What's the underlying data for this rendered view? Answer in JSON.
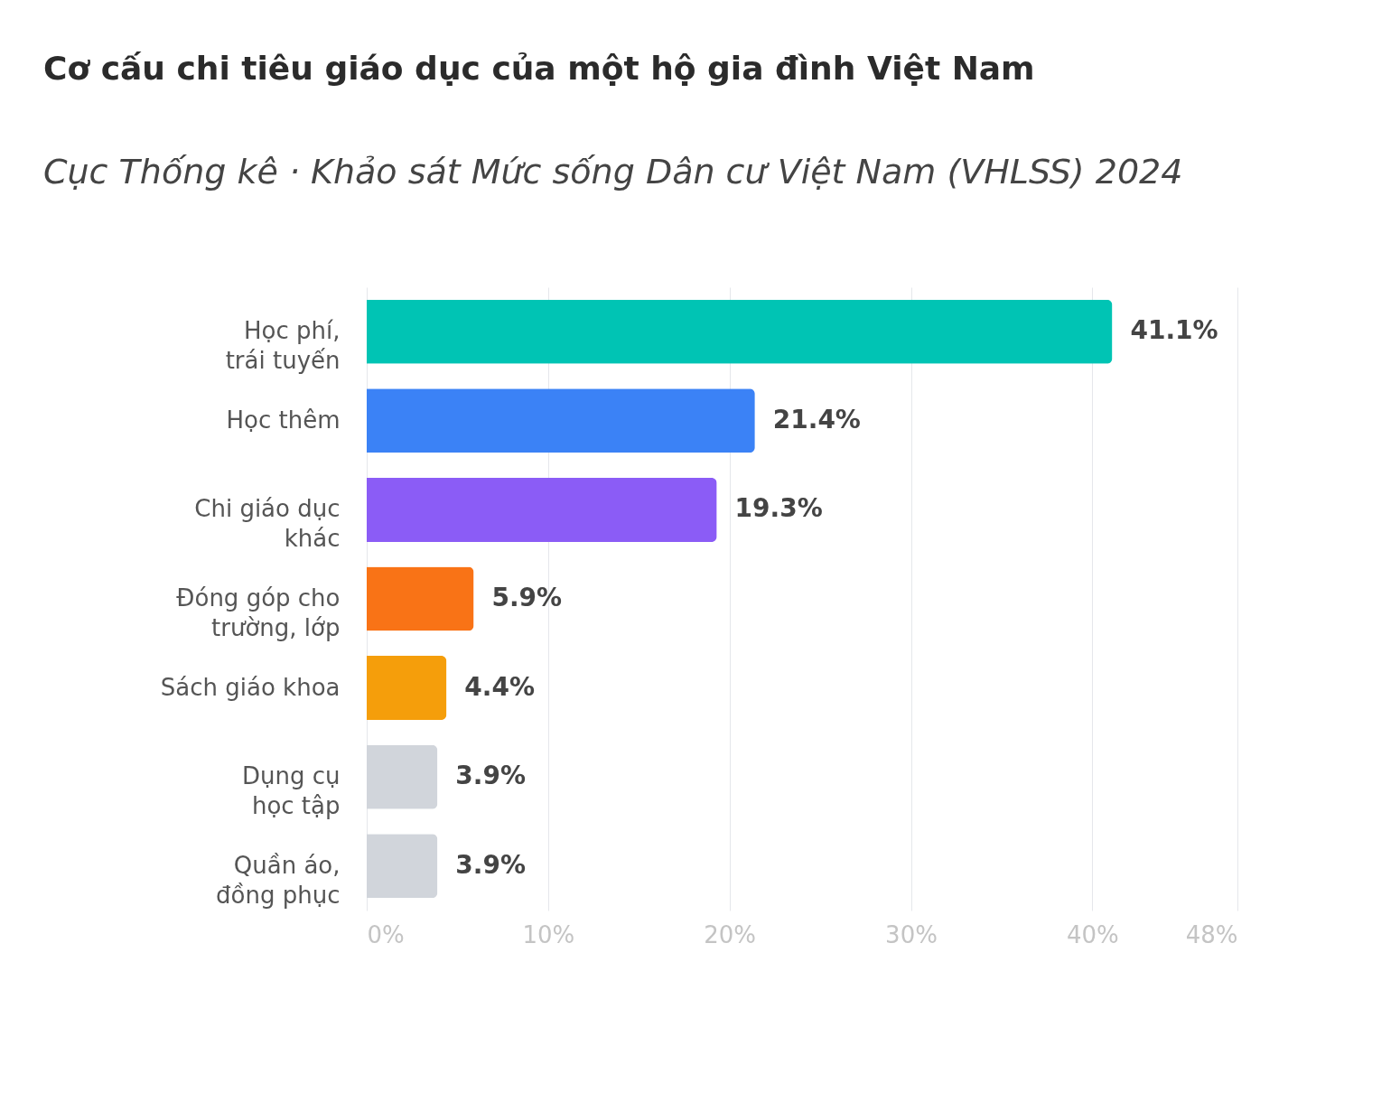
{
  "chart_data": {
    "type": "bar",
    "orientation": "horizontal",
    "title": "Cơ cấu chi tiêu giáo dục của một hộ gia đình Việt Nam",
    "subtitle": "Cục Thống kê · Khảo sát Mức sống Dân cư Việt Nam (VHLSS) 2024",
    "categories": [
      "Học phí,\ntrái tuyến",
      "Học thêm",
      "Chi giáo dục\nkhác",
      "Đóng góp cho\ntrường, lớp",
      "Sách giáo khoa",
      "Dụng cụ\nhọc tập",
      "Quần áo,\nđồng phục"
    ],
    "values": [
      41.1,
      21.4,
      19.3,
      5.9,
      4.4,
      3.9,
      3.9
    ],
    "colors": [
      "#00c4b4",
      "#3b82f6",
      "#8b5cf6",
      "#f97316",
      "#f59e0b",
      "#d1d5db",
      "#d1d5db"
    ],
    "value_labels": [
      "41.1%",
      "21.4%",
      "19.3%",
      "5.9%",
      "4.4%",
      "3.9%",
      "3.9%"
    ],
    "xlim": [
      0,
      48
    ],
    "xticks": [
      {
        "value": 0,
        "label": "0%"
      },
      {
        "value": 10,
        "label": "10%"
      },
      {
        "value": 20,
        "label": "20%"
      },
      {
        "value": 30,
        "label": "30%"
      },
      {
        "value": 40,
        "label": "40%"
      },
      {
        "value": 48,
        "label": "48%"
      }
    ],
    "grid": "x"
  }
}
